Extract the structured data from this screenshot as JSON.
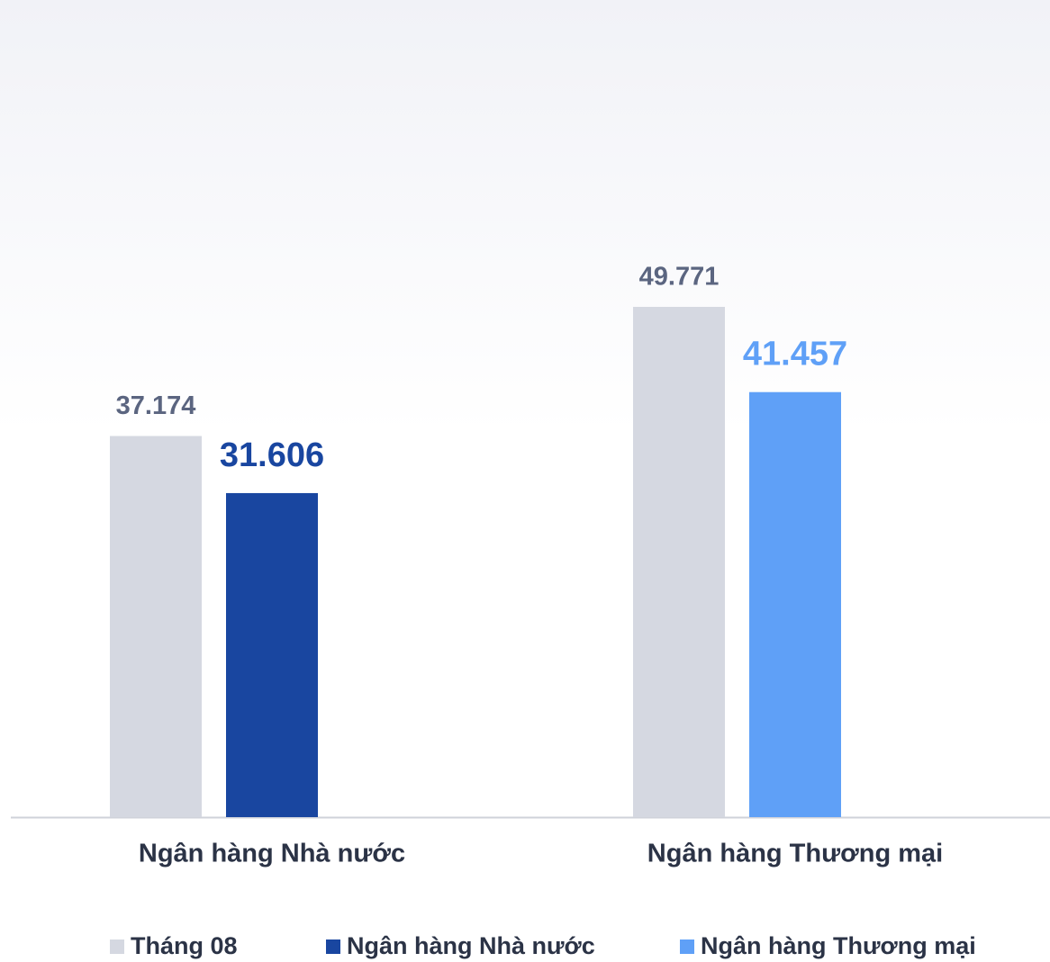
{
  "chart_data": {
    "type": "bar",
    "categories": [
      "Ngân hàng Nhà nước",
      "Ngân hàng Thương mại"
    ],
    "series": [
      {
        "name": "Tháng 08",
        "color": "#d5d8e1",
        "values": [
          37.174,
          49.771
        ]
      },
      {
        "name": "Ngân hàng Nhà nước",
        "color": "#1946a0",
        "values": [
          31.606,
          null
        ]
      },
      {
        "name": "Ngân hàng Thương mại",
        "color": "#5fa0f7",
        "values": [
          null,
          41.457
        ]
      }
    ]
  }
}
